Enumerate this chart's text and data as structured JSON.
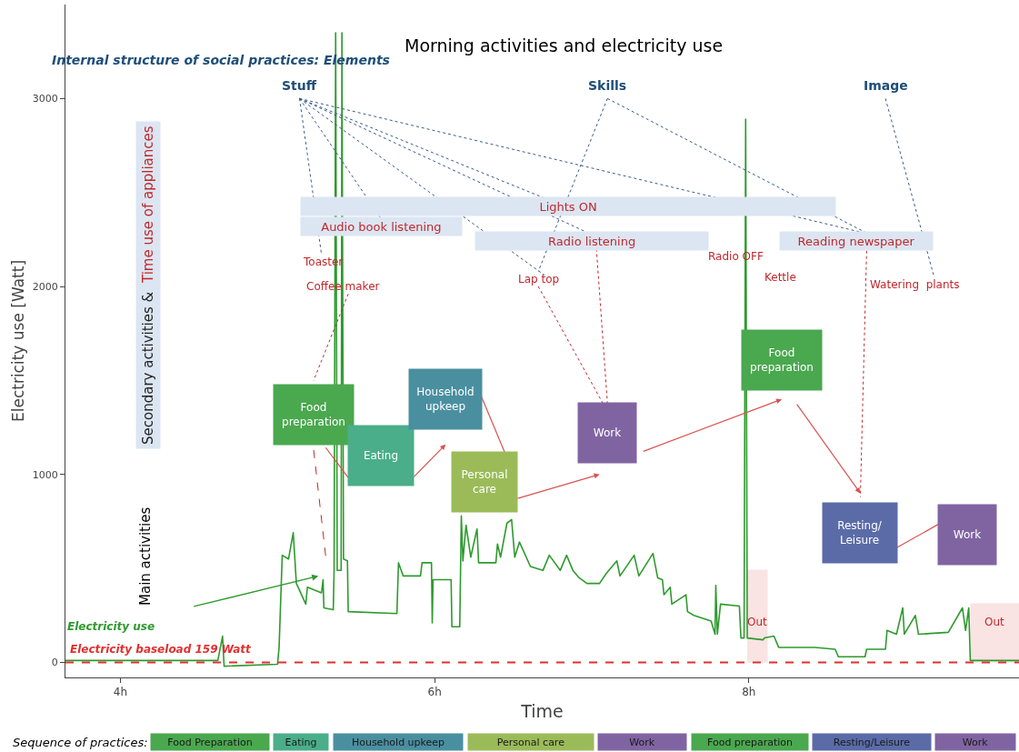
{
  "chart_data": {
    "type": "line",
    "title": "Morning activities and electricity use",
    "xlabel": "Time",
    "ylabel": "Electricity use [Watt]",
    "xlim": [
      3.65,
      9.72
    ],
    "xticks": [
      {
        "value": 4,
        "label": "4h"
      },
      {
        "value": 6,
        "label": "6h"
      },
      {
        "value": 8,
        "label": "8h"
      }
    ],
    "ylim": [
      -80,
      3500
    ],
    "yticks": [
      0,
      1000,
      2000,
      3000
    ],
    "grid": false,
    "legend": false,
    "marker": "none",
    "line_style": "solid",
    "series": [
      {
        "name": "Electricity use",
        "color": "#2e9a2e",
        "x": [
          3.65,
          4.62,
          4.65,
          4.66,
          5.0,
          5.01,
          5.03,
          5.07,
          5.1,
          5.12,
          5.18,
          5.19,
          5.28,
          5.29,
          5.295,
          5.355,
          5.36,
          5.37,
          5.38,
          5.405,
          5.41,
          5.42,
          5.445,
          5.45,
          5.76,
          5.77,
          5.8,
          5.91,
          5.92,
          5.98,
          5.985,
          5.99,
          6.105,
          6.11,
          6.16,
          6.17,
          6.18,
          6.2,
          6.23,
          6.27,
          6.28,
          6.39,
          6.4,
          6.42,
          6.46,
          6.49,
          6.51,
          6.54,
          6.61,
          6.69,
          6.73,
          6.8,
          6.84,
          6.88,
          6.92,
          6.97,
          7.05,
          7.09,
          7.16,
          7.18,
          7.27,
          7.3,
          7.39,
          7.42,
          7.45,
          7.46,
          7.5,
          7.51,
          7.6,
          7.61,
          7.65,
          7.76,
          7.785,
          7.79,
          7.8,
          7.82,
          7.94,
          7.95,
          7.97,
          7.98,
          7.99,
          8.09,
          8.1,
          8.16,
          8.19,
          8.42,
          8.55,
          8.57,
          8.74,
          8.75,
          8.87,
          8.88,
          8.94,
          8.98,
          8.99,
          9.06,
          9.08,
          9.27,
          9.36,
          9.38,
          9.4,
          9.41,
          9.72
        ],
        "values": [
          10,
          10,
          140,
          -20,
          -10,
          80,
          570,
          550,
          690,
          420,
          310,
          400,
          370,
          440,
          290,
          280,
          490,
          3350,
          490,
          490,
          3350,
          550,
          540,
          270,
          260,
          530,
          460,
          460,
          530,
          530,
          210,
          440,
          440,
          190,
          190,
          780,
          540,
          730,
          560,
          710,
          530,
          530,
          630,
          560,
          740,
          760,
          560,
          640,
          510,
          490,
          570,
          490,
          570,
          490,
          450,
          420,
          420,
          470,
          540,
          460,
          570,
          460,
          580,
          450,
          440,
          360,
          400,
          310,
          360,
          270,
          250,
          220,
          150,
          410,
          150,
          310,
          300,
          130,
          130,
          2890,
          130,
          120,
          130,
          140,
          80,
          80,
          70,
          30,
          30,
          70,
          70,
          170,
          150,
          290,
          150,
          250,
          150,
          160,
          290,
          170,
          290,
          10,
          10
        ]
      }
    ],
    "ref_lines": [
      {
        "axis": "y",
        "value": 0,
        "label": "Electricity baseload 159 Watt",
        "color": "#e03030",
        "line_style": "dashed"
      }
    ],
    "bands": [
      {
        "axis": "x",
        "from": 7.99,
        "to": 8.12,
        "label": "Out",
        "color": "#f9e3e3"
      },
      {
        "axis": "x",
        "from": 9.41,
        "to": 9.72,
        "label": "Out",
        "color": "#f9e3e3"
      }
    ],
    "annotations": [
      "Internal structure of social practices: Elements",
      "Stuff",
      "Skills",
      "Image",
      "Secondary activities &",
      "Time use of appliances",
      "Main activities",
      "Lights ON",
      "Audio book listening",
      "Radio listening",
      "Reading newspaper",
      "Toaster",
      "Coffee maker",
      "Lap top",
      "Radio OFF",
      "Kettle",
      "Watering  plants",
      "Food preparation",
      "Eating",
      "Household upkeep",
      "Personal care",
      "Work",
      "Food preparation",
      "Resting/ Leisure",
      "Work",
      "Sequence of practices:",
      "Food Preparation",
      "Eating",
      "Household upkeep",
      "Personal care",
      "Work",
      "Food preparation",
      "Resting/Leisure",
      "Work"
    ]
  }
}
